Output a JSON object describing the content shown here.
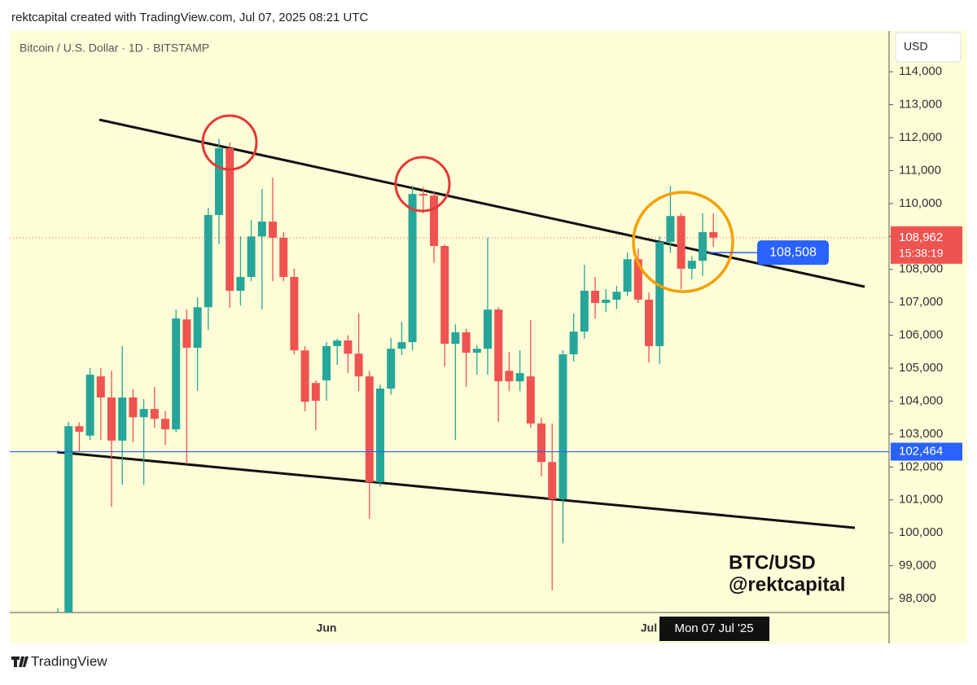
{
  "chart_data": {
    "type": "candlestick",
    "header": "rektcapital created with TradingView.com, Jul 07, 2025 08:21 UTC",
    "title": "Bitcoin / U.S. Dollar · 1D · BITSTAMP",
    "currency": "USD",
    "brand": "TradingView",
    "watermark": [
      "BTC/USD",
      "@rektcapital"
    ],
    "crosshair_label": "Mon 07 Jul '25",
    "up_color": "#26a69a",
    "down_color": "#ef5350",
    "grid": false,
    "categories": [
      null,
      null,
      null,
      null,
      null,
      null,
      null,
      null,
      null,
      null,
      null,
      null,
      null,
      null,
      null,
      null,
      null,
      null,
      null,
      null,
      null,
      null,
      null,
      null,
      null,
      "Jun",
      null,
      null,
      null,
      null,
      null,
      null,
      null,
      null,
      null,
      null,
      null,
      null,
      null,
      null,
      null,
      null,
      null,
      null,
      null,
      null,
      null,
      null,
      null,
      null,
      null,
      null,
      null,
      null,
      null,
      "Jul",
      null,
      null,
      null,
      null,
      null,
      null
    ],
    "open": [
      96830,
      97030,
      103240,
      102950,
      104750,
      104110,
      102800,
      104110,
      103510,
      103760,
      103460,
      103140,
      106480,
      105620,
      106850,
      109650,
      111680,
      107350,
      107770,
      109000,
      109450,
      108960,
      107770,
      105540,
      104550,
      104630,
      105670,
      105840,
      105440,
      104750,
      101540,
      104380,
      105590,
      105790,
      110290,
      110240,
      108710,
      105740,
      106090,
      105470,
      105590,
      106780,
      104920,
      104600,
      104750,
      103320,
      102150,
      101020,
      105420,
      106110,
      107350,
      106980,
      107080,
      107320,
      108310,
      107080,
      105670,
      108830,
      109620,
      108020,
      108260,
      109130
    ],
    "high": [
      97700,
      103370,
      103350,
      105000,
      105000,
      104920,
      105670,
      104360,
      104060,
      104430,
      103690,
      106780,
      106780,
      107150,
      109870,
      111970,
      111850,
      109000,
      109500,
      110440,
      110790,
      109130,
      108020,
      105670,
      104630,
      105800,
      105900,
      106000,
      106660,
      104920,
      104500,
      105910,
      106410,
      110540,
      110500,
      110360,
      108760,
      106330,
      106200,
      105700,
      108960,
      106850,
      105500,
      105540,
      106460,
      103500,
      103320,
      105540,
      106660,
      108140,
      107770,
      107400,
      107500,
      108510,
      108630,
      107300,
      109000,
      110540,
      109700,
      108400,
      109700,
      109700
    ],
    "low": [
      95800,
      95900,
      102450,
      102820,
      102820,
      100790,
      101460,
      102750,
      101460,
      103190,
      102670,
      103050,
      102080,
      104310,
      106160,
      108760,
      106830,
      106900,
      107640,
      106780,
      107640,
      107640,
      105420,
      103690,
      103120,
      104010,
      105100,
      104850,
      104300,
      100420,
      101400,
      104200,
      105400,
      105540,
      109700,
      108200,
      105050,
      102820,
      104430,
      104800,
      104800,
      103370,
      104300,
      104300,
      103190,
      101710,
      98250,
      99680,
      105200,
      105900,
      106500,
      106700,
      106800,
      107200,
      106980,
      105170,
      105120,
      108500,
      107400,
      107700,
      107800,
      108680
    ],
    "close": [
      97030,
      103240,
      103070,
      104800,
      104110,
      102800,
      104110,
      103510,
      103760,
      103460,
      103140,
      106510,
      105620,
      106850,
      109650,
      111680,
      107350,
      107770,
      109000,
      109450,
      108960,
      107770,
      105540,
      103980,
      104010,
      105670,
      105840,
      105440,
      104750,
      101540,
      104380,
      105590,
      105790,
      110290,
      110240,
      108710,
      105740,
      106090,
      105470,
      105590,
      106780,
      104600,
      104600,
      104850,
      103320,
      102150,
      101020,
      105420,
      106110,
      107350,
      106980,
      107080,
      107320,
      108310,
      107080,
      105670,
      108830,
      109620,
      108020,
      108260,
      109130,
      108962
    ],
    "ylim": [
      97580,
      115240
    ],
    "yticks": [
      {
        "value": 98000,
        "label": "98,000"
      },
      {
        "value": 99000,
        "label": "99,000"
      },
      {
        "value": 100000,
        "label": "100,000"
      },
      {
        "value": 101000,
        "label": "101,000"
      },
      {
        "value": 102000,
        "label": "102,000"
      },
      {
        "value": 103000,
        "label": "103,000"
      },
      {
        "value": 104000,
        "label": "104,000"
      },
      {
        "value": 105000,
        "label": "105,000"
      },
      {
        "value": 106000,
        "label": "106,000"
      },
      {
        "value": 107000,
        "label": "107,000"
      },
      {
        "value": 108000,
        "label": "108,000"
      },
      {
        "value": 109000,
        "label": "109,000"
      },
      {
        "value": 110000,
        "label": "110,000"
      },
      {
        "value": 111000,
        "label": "111,000"
      },
      {
        "value": 112000,
        "label": "112,000"
      },
      {
        "value": 113000,
        "label": "113,000"
      },
      {
        "value": 114000,
        "label": "114,000"
      }
    ],
    "price_lines": [
      {
        "value": 108962,
        "label": "108,962",
        "countdown": "15:38:19",
        "color": "#ef5350"
      },
      {
        "value": 102464,
        "label": "102,464",
        "color": "#2962ff"
      },
      {
        "value": 108508,
        "label": "108,508",
        "color": "#2962ff"
      }
    ]
  }
}
